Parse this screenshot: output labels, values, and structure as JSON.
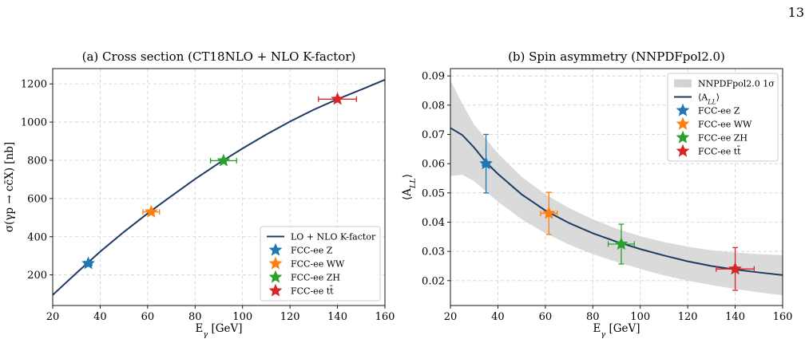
{
  "page_number": "13",
  "colors": {
    "curve": "#1f3b63",
    "band": "#d3d3d3",
    "FCC-ee Z": "#1f77b4",
    "FCC-ee WW": "#ff7f0e",
    "FCC-ee ZH": "#2ca02c",
    "FCC-ee tt": "#d62728"
  },
  "chart_data": [
    {
      "type": "line",
      "title": "(a) Cross section (CT18NLO + NLO K-factor)",
      "xlabel": "E_γ [GeV]",
      "ylabel": "σ(γp → cc̄X) [nb]",
      "xlim": [
        20,
        160
      ],
      "ylim": [
        40,
        1280
      ],
      "xticks": [
        20,
        40,
        60,
        80,
        100,
        120,
        140,
        160
      ],
      "yticks": [
        200,
        400,
        600,
        800,
        1000,
        1200
      ],
      "grid": true,
      "legend_position": "lower-right",
      "curve": {
        "name": "LO + NLO K-factor",
        "x": [
          20,
          30,
          40,
          50,
          60,
          70,
          80,
          90,
          100,
          110,
          120,
          130,
          140,
          150,
          160
        ],
        "y": [
          95,
          210,
          322,
          425,
          522,
          613,
          702,
          785,
          862,
          935,
          1003,
          1065,
          1120,
          1170,
          1222
        ]
      },
      "points": [
        {
          "name": "FCC-ee Z",
          "color_key": "FCC-ee Z",
          "x": 35,
          "y": 260,
          "xerr": 1.5,
          "yerr": 0
        },
        {
          "name": "FCC-ee WW",
          "color_key": "FCC-ee WW",
          "x": 61.5,
          "y": 530,
          "xerr": 3.5,
          "yerr": 0
        },
        {
          "name": "FCC-ee ZH",
          "color_key": "FCC-ee ZH",
          "x": 92,
          "y": 798,
          "xerr": 5.5,
          "yerr": 0
        },
        {
          "name": "FCC-ee tt̄",
          "color_key": "FCC-ee tt",
          "x": 140,
          "y": 1120,
          "xerr": 8,
          "yerr": 0
        }
      ]
    },
    {
      "type": "line",
      "title": "(b) Spin asymmetry (NNPDFpol2.0)",
      "xlabel": "E_γ [GeV]",
      "ylabel": "⟨A_LL⟩",
      "xlim": [
        20,
        160
      ],
      "ylim": [
        0.0115,
        0.0925
      ],
      "xticks": [
        20,
        40,
        60,
        80,
        100,
        120,
        140,
        160
      ],
      "yticks": [
        0.02,
        0.03,
        0.04,
        0.05,
        0.06,
        0.07,
        0.08,
        0.09
      ],
      "ytick_labels": [
        "0.02",
        "0.03",
        "0.04",
        "0.05",
        "0.06",
        "0.07",
        "0.08",
        "0.09"
      ],
      "grid": true,
      "legend_position": "upper-right",
      "band": {
        "name": "NNPDFpol2.0 1σ",
        "x": [
          20,
          25,
          30,
          35,
          40,
          50,
          60,
          70,
          80,
          90,
          100,
          110,
          120,
          130,
          140,
          150,
          160
        ],
        "lower": [
          0.0558,
          0.0562,
          0.054,
          0.0505,
          0.047,
          0.041,
          0.0362,
          0.0323,
          0.0291,
          0.0264,
          0.024,
          0.0218,
          0.02,
          0.0185,
          0.0172,
          0.016,
          0.015
        ],
        "upper": [
          0.0885,
          0.0805,
          0.0733,
          0.0685,
          0.0635,
          0.0555,
          0.0495,
          0.0448,
          0.041,
          0.0378,
          0.0352,
          0.0332,
          0.0316,
          0.0304,
          0.0296,
          0.0291,
          0.0287
        ]
      },
      "curve": {
        "name": "⟨A_LL⟩",
        "x": [
          20,
          25,
          30,
          35,
          40,
          50,
          60,
          70,
          80,
          90,
          100,
          110,
          120,
          130,
          140,
          150,
          160
        ],
        "y": [
          0.0722,
          0.0698,
          0.0655,
          0.0605,
          0.0565,
          0.0495,
          0.044,
          0.0397,
          0.0362,
          0.0333,
          0.0308,
          0.0286,
          0.0266,
          0.025,
          0.0238,
          0.0228,
          0.0219
        ]
      },
      "points": [
        {
          "name": "FCC-ee Z",
          "color_key": "FCC-ee Z",
          "x": 35,
          "y": 0.06,
          "xerr": 1.5,
          "yerr": 0.01
        },
        {
          "name": "FCC-ee WW",
          "color_key": "FCC-ee WW",
          "x": 61.5,
          "y": 0.043,
          "xerr": 3.5,
          "yerr": 0.0072
        },
        {
          "name": "FCC-ee ZH",
          "color_key": "FCC-ee ZH",
          "x": 92,
          "y": 0.0325,
          "xerr": 5.5,
          "yerr": 0.0068
        },
        {
          "name": "FCC-ee tt̄",
          "color_key": "FCC-ee tt",
          "x": 140,
          "y": 0.024,
          "xerr": 8,
          "yerr": 0.0073
        }
      ]
    }
  ]
}
